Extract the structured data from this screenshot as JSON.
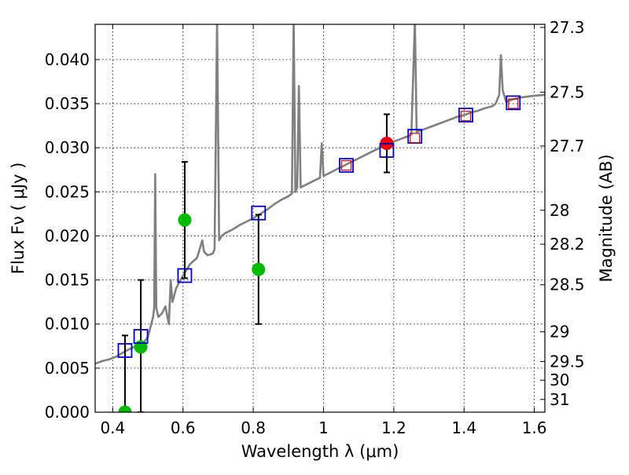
{
  "chart_data": {
    "type": "scatter",
    "xlabel": "Wavelength  λ (μm)",
    "ylabel": "Flux  Fν  ( μJy )",
    "ylabel_right": "Magnitude (AB)",
    "xlim": [
      0.35,
      1.63
    ],
    "ylim": [
      0.0,
      0.044
    ],
    "grid": true,
    "x_ticks": [
      {
        "value": 0.4,
        "label": "0.4"
      },
      {
        "value": 0.6,
        "label": "0.6"
      },
      {
        "value": 0.8,
        "label": "0.8"
      },
      {
        "value": 1.0,
        "label": "1"
      },
      {
        "value": 1.2,
        "label": "1.2"
      },
      {
        "value": 1.4,
        "label": "1.4"
      },
      {
        "value": 1.6,
        "label": "1.6"
      }
    ],
    "y_ticks": [
      {
        "value": 0.0,
        "label": "0.000"
      },
      {
        "value": 0.005,
        "label": "0.005"
      },
      {
        "value": 0.01,
        "label": "0.010"
      },
      {
        "value": 0.015,
        "label": "0.015"
      },
      {
        "value": 0.02,
        "label": "0.020"
      },
      {
        "value": 0.025,
        "label": "0.025"
      },
      {
        "value": 0.03,
        "label": "0.030"
      },
      {
        "value": 0.035,
        "label": "0.035"
      },
      {
        "value": 0.04,
        "label": "0.040"
      }
    ],
    "right_ticks": [
      {
        "mag": 27.3,
        "label": "27.3"
      },
      {
        "mag": 27.5,
        "label": "27.5"
      },
      {
        "mag": 27.7,
        "label": "27.7"
      },
      {
        "mag": 28.0,
        "label": "28"
      },
      {
        "mag": 28.2,
        "label": "28.2"
      },
      {
        "mag": 28.5,
        "label": "28.5"
      },
      {
        "mag": 29.0,
        "label": "29"
      },
      {
        "mag": 29.5,
        "label": "29.5"
      },
      {
        "mag": 30.0,
        "label": "30"
      },
      {
        "mag": 31.0,
        "label": "31"
      }
    ],
    "series": [
      {
        "name": "model_spectrum",
        "kind": "line",
        "color": "#808080",
        "points": [
          [
            0.35,
            0.0055
          ],
          [
            0.37,
            0.0058
          ],
          [
            0.39,
            0.006
          ],
          [
            0.41,
            0.0063
          ],
          [
            0.43,
            0.0068
          ],
          [
            0.45,
            0.0072
          ],
          [
            0.47,
            0.0076
          ],
          [
            0.49,
            0.008
          ],
          [
            0.5,
            0.0085
          ],
          [
            0.505,
            0.0093
          ],
          [
            0.51,
            0.01
          ],
          [
            0.515,
            0.0108
          ],
          [
            0.518,
            0.0118
          ],
          [
            0.521,
            0.027
          ],
          [
            0.524,
            0.0118
          ],
          [
            0.53,
            0.0108
          ],
          [
            0.54,
            0.0112
          ],
          [
            0.55,
            0.012
          ],
          [
            0.56,
            0.01
          ],
          [
            0.565,
            0.015
          ],
          [
            0.57,
            0.0125
          ],
          [
            0.58,
            0.014
          ],
          [
            0.59,
            0.0148
          ],
          [
            0.6,
            0.0155
          ],
          [
            0.62,
            0.0168
          ],
          [
            0.64,
            0.0175
          ],
          [
            0.655,
            0.0195
          ],
          [
            0.66,
            0.0182
          ],
          [
            0.67,
            0.0178
          ],
          [
            0.685,
            0.018
          ],
          [
            0.69,
            0.0185
          ],
          [
            0.697,
            0.0445
          ],
          [
            0.703,
            0.0195
          ],
          [
            0.71,
            0.02
          ],
          [
            0.72,
            0.0203
          ],
          [
            0.74,
            0.0207
          ],
          [
            0.76,
            0.0212
          ],
          [
            0.78,
            0.0216
          ],
          [
            0.8,
            0.022
          ],
          [
            0.82,
            0.0225
          ],
          [
            0.84,
            0.023
          ],
          [
            0.86,
            0.0236
          ],
          [
            0.88,
            0.0241
          ],
          [
            0.9,
            0.0245
          ],
          [
            0.91,
            0.0248
          ],
          [
            0.915,
            0.0445
          ],
          [
            0.92,
            0.025
          ],
          [
            0.925,
            0.0255
          ],
          [
            0.93,
            0.037
          ],
          [
            0.935,
            0.0255
          ],
          [
            0.95,
            0.0258
          ],
          [
            0.97,
            0.0262
          ],
          [
            0.99,
            0.0266
          ],
          [
            0.995,
            0.0305
          ],
          [
            1.0,
            0.0268
          ],
          [
            1.02,
            0.0272
          ],
          [
            1.04,
            0.0276
          ],
          [
            1.06,
            0.028
          ],
          [
            1.08,
            0.0284
          ],
          [
            1.1,
            0.0288
          ],
          [
            1.12,
            0.0292
          ],
          [
            1.14,
            0.0296
          ],
          [
            1.16,
            0.03
          ],
          [
            1.18,
            0.0304
          ],
          [
            1.2,
            0.0307
          ],
          [
            1.22,
            0.031
          ],
          [
            1.24,
            0.0313
          ],
          [
            1.25,
            0.0315
          ],
          [
            1.26,
            0.0445
          ],
          [
            1.265,
            0.0318
          ],
          [
            1.28,
            0.032
          ],
          [
            1.3,
            0.0323
          ],
          [
            1.32,
            0.0326
          ],
          [
            1.34,
            0.0329
          ],
          [
            1.36,
            0.0332
          ],
          [
            1.38,
            0.0335
          ],
          [
            1.4,
            0.0337
          ],
          [
            1.42,
            0.034
          ],
          [
            1.44,
            0.0342
          ],
          [
            1.46,
            0.0345
          ],
          [
            1.48,
            0.0347
          ],
          [
            1.49,
            0.035
          ],
          [
            1.5,
            0.036
          ],
          [
            1.505,
            0.0405
          ],
          [
            1.51,
            0.0365
          ],
          [
            1.52,
            0.0352
          ],
          [
            1.54,
            0.0355
          ],
          [
            1.56,
            0.0357
          ],
          [
            1.58,
            0.0358
          ],
          [
            1.6,
            0.0359
          ],
          [
            1.63,
            0.036
          ]
        ]
      },
      {
        "name": "observed_photometry",
        "kind": "points",
        "marker": "circle",
        "color": "#00bb00",
        "points": [
          {
            "x": 0.435,
            "y": 0.0,
            "yerr": 0.0087
          },
          {
            "x": 0.48,
            "y": 0.0074,
            "yerr": 0.0076
          },
          {
            "x": 0.605,
            "y": 0.0218,
            "yerr": 0.0066
          },
          {
            "x": 0.815,
            "y": 0.0162,
            "yerr": 0.0062
          }
        ]
      },
      {
        "name": "observed_ir_point",
        "kind": "points",
        "marker": "circle",
        "color": "#ee0000",
        "points": [
          {
            "x": 1.18,
            "y": 0.0305,
            "yerr": 0.0033
          }
        ]
      },
      {
        "name": "model_photometry",
        "kind": "points",
        "marker": "open-square",
        "color": "#0000cc",
        "points": [
          {
            "x": 0.435,
            "y": 0.007
          },
          {
            "x": 0.48,
            "y": 0.0086
          },
          {
            "x": 0.605,
            "y": 0.0155
          },
          {
            "x": 0.815,
            "y": 0.0226
          },
          {
            "x": 1.065,
            "y": 0.028
          },
          {
            "x": 1.18,
            "y": 0.0297
          },
          {
            "x": 1.26,
            "y": 0.0313
          },
          {
            "x": 1.405,
            "y": 0.0337
          },
          {
            "x": 1.54,
            "y": 0.0351
          }
        ]
      },
      {
        "name": "model_photometry_small",
        "kind": "points",
        "marker": "open-square-small",
        "color": "#cc0000",
        "points": [
          {
            "x": 1.065,
            "y": 0.028
          },
          {
            "x": 1.26,
            "y": 0.0311
          },
          {
            "x": 1.405,
            "y": 0.0336
          },
          {
            "x": 1.54,
            "y": 0.035
          }
        ]
      }
    ]
  }
}
